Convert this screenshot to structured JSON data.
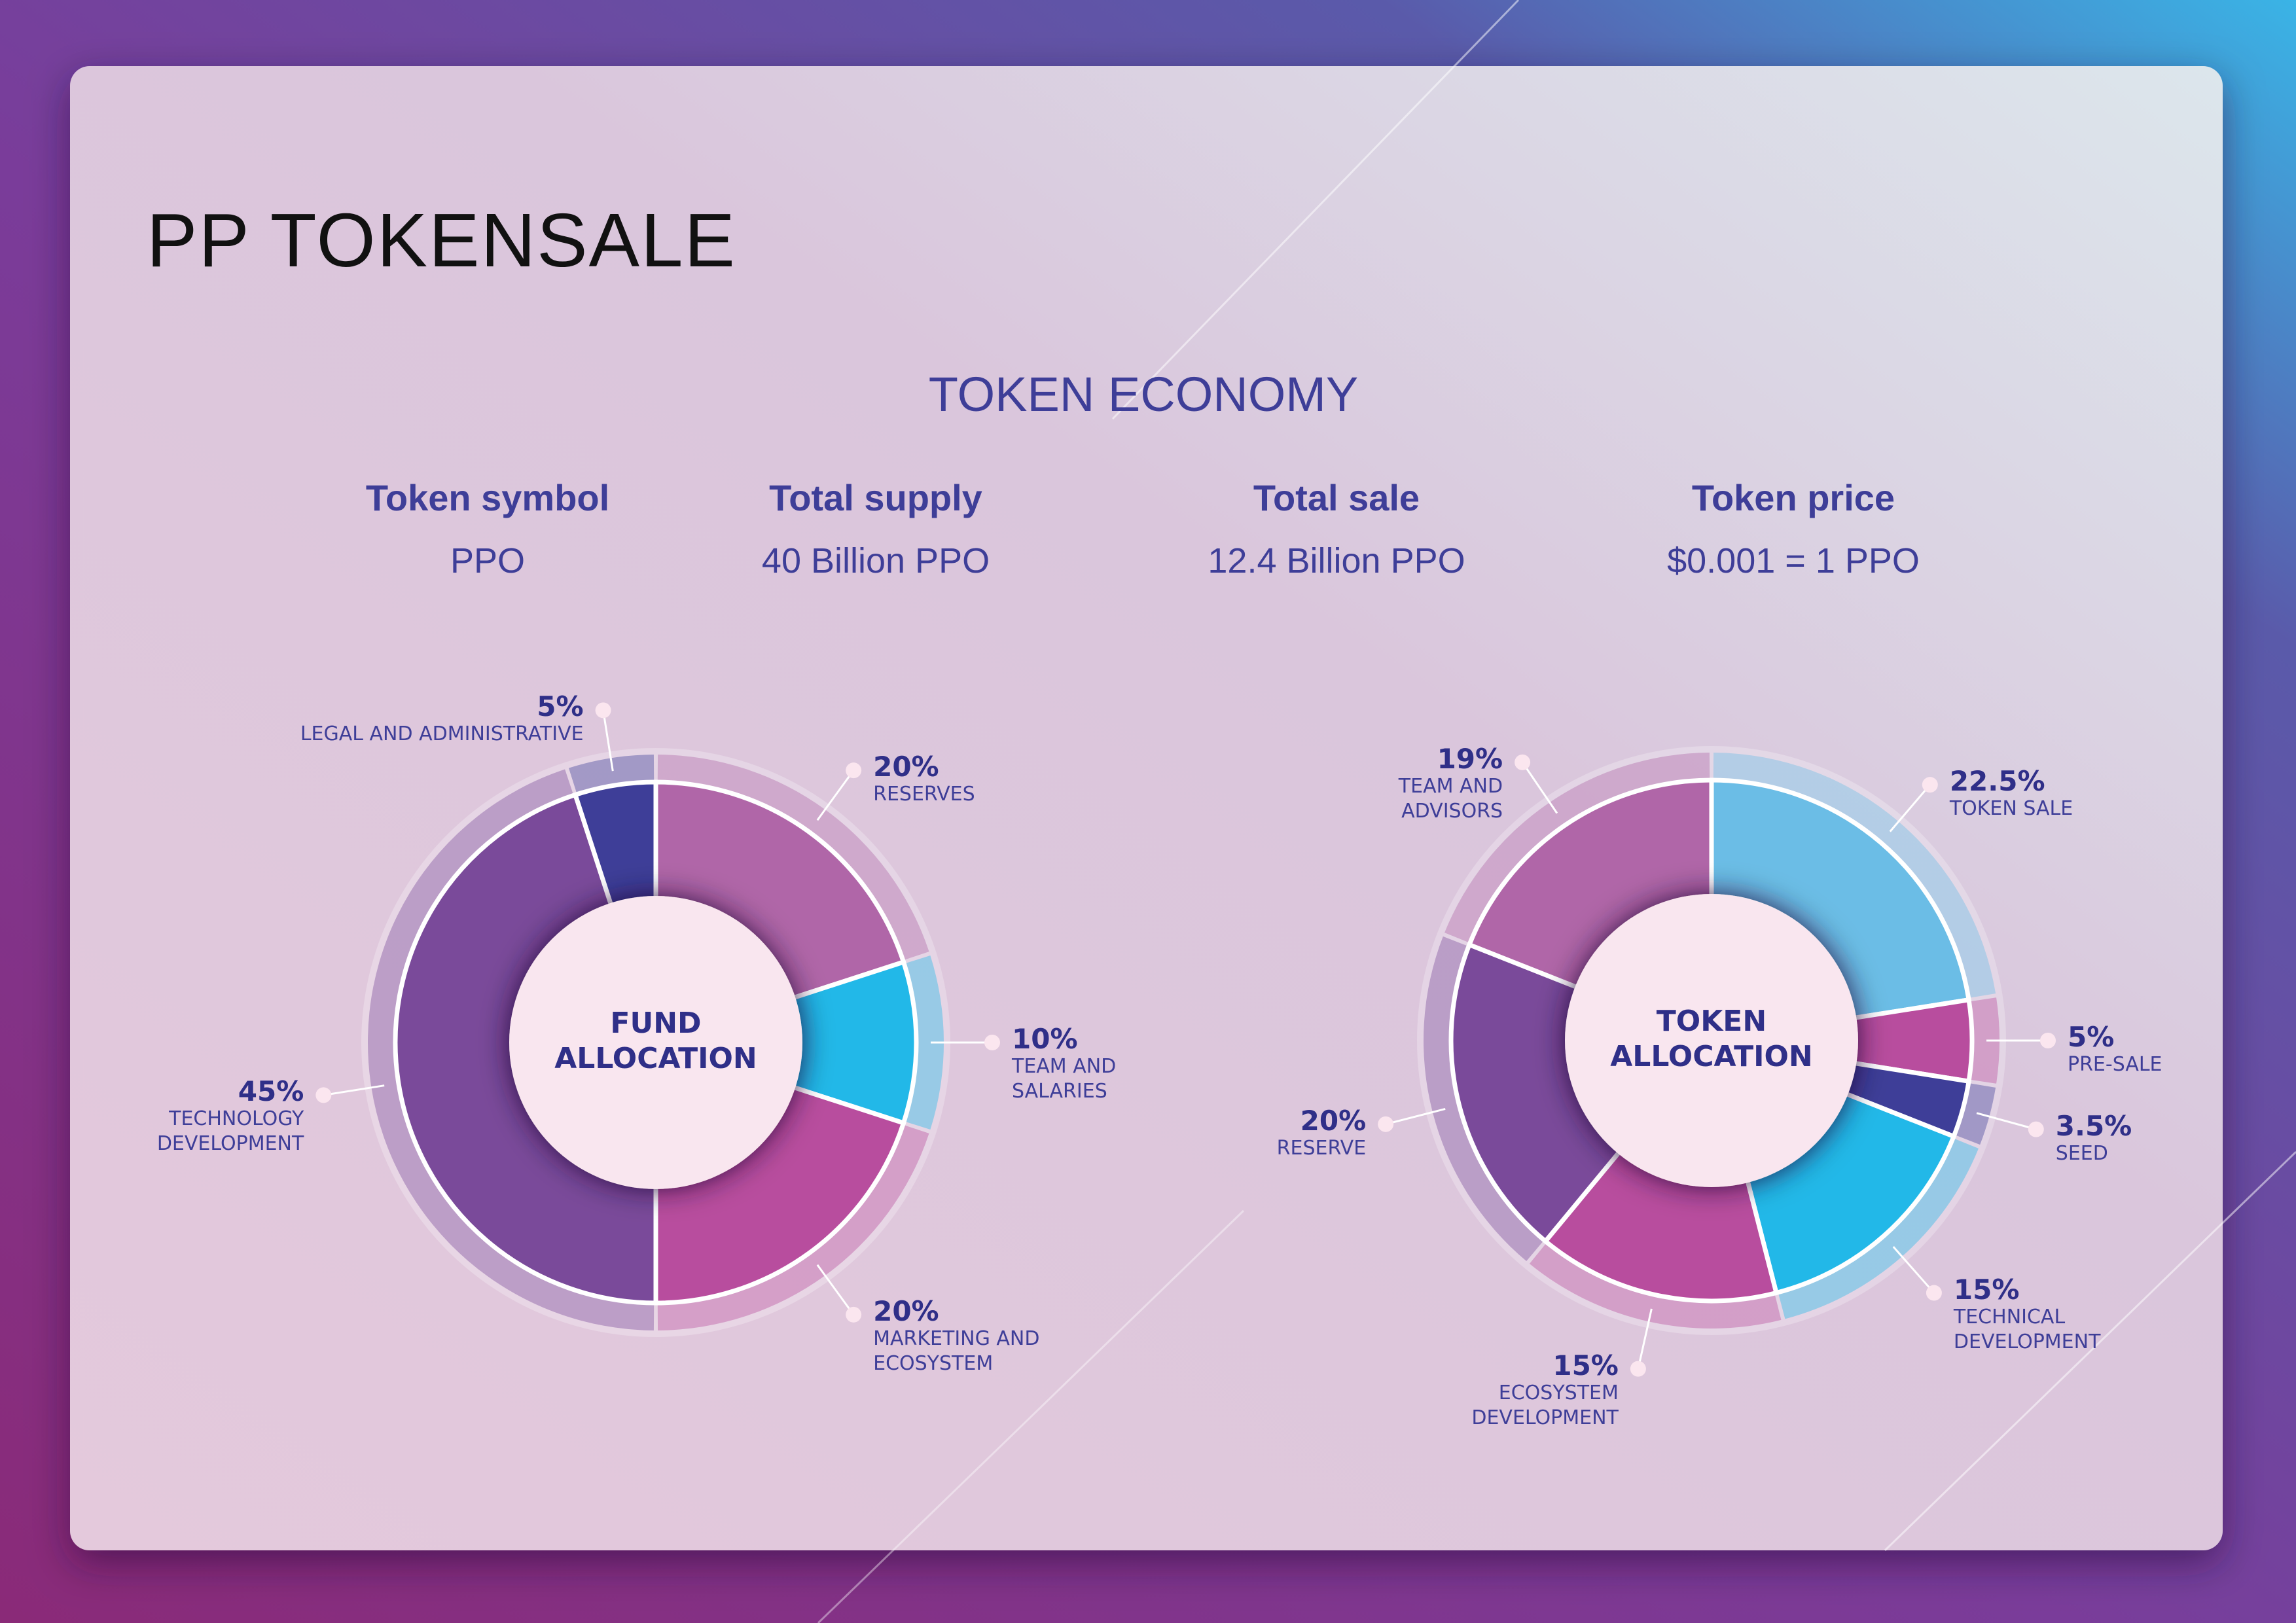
{
  "header": {
    "title": "PP TOKENSALE"
  },
  "economy": {
    "title": "TOKEN ECONOMY",
    "items": [
      {
        "label": "Token symbol",
        "value": "PPO"
      },
      {
        "label": "Total supply",
        "value": "40 Billion PPO"
      },
      {
        "label": "Total sale",
        "value": "12.4 Billion PPO"
      },
      {
        "label": "Token price",
        "value": "$0.001 = 1 PPO"
      }
    ]
  },
  "chart_data": [
    {
      "type": "donut",
      "title": "FUND ALLOCATION",
      "categories": [
        "RESERVES",
        "TEAM AND\nSALARIES",
        "MARKETING AND\nECOSYSTEM",
        "TECHNOLOGY\nDEVELOPMENT",
        "LEGAL AND ADMINISTRATIVE"
      ],
      "values": [
        20,
        10,
        20,
        45,
        5
      ],
      "value_labels": [
        "20%",
        "10%",
        "20%",
        "45%",
        "5%"
      ],
      "colors": [
        "#b066a8",
        "#22b8e8",
        "#b84d9e",
        "#7a4a9a",
        "#3e3e98"
      ]
    },
    {
      "type": "donut",
      "title": "TOKEN ALLOCATION",
      "categories": [
        "TOKEN SALE",
        "PRE-SALE",
        "SEED",
        "TECHNICAL\nDEVELOPMENT",
        "ECOSYSTEM\nDEVELOPMENT",
        "RESERVE",
        "TEAM AND\nADVISORS"
      ],
      "values": [
        22.5,
        5,
        3.5,
        15,
        15,
        20,
        19
      ],
      "value_labels": [
        "22.5%",
        "5%",
        "3.5%",
        "15%",
        "15%",
        "20%",
        "19%"
      ],
      "colors": [
        "#6bbde6",
        "#b84d9e",
        "#3e3e98",
        "#22b8e8",
        "#b84d9e",
        "#7a4a9a",
        "#b066a8"
      ]
    }
  ]
}
